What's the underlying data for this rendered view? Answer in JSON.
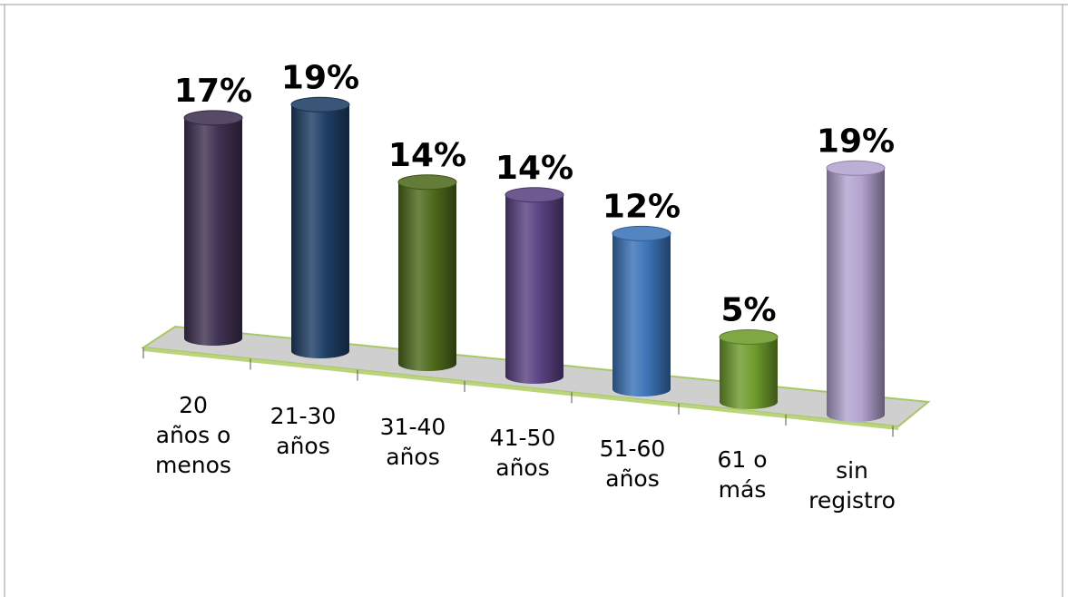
{
  "chart_data": {
    "type": "bar",
    "style": "3d-cylinder",
    "categories": [
      "20 años o menos",
      "21-30 años",
      "31-40 años",
      "41-50 años",
      "51-60 años",
      "61 o más",
      "sin registro"
    ],
    "category_lines": [
      [
        "20",
        "años o",
        "menos"
      ],
      [
        "21-30",
        "años"
      ],
      [
        "31-40",
        "años"
      ],
      [
        "41-50",
        "años"
      ],
      [
        "51-60",
        "años"
      ],
      [
        "61 o",
        "más"
      ],
      [
        "sin",
        "registro"
      ]
    ],
    "values": [
      17,
      19,
      14,
      14,
      12,
      5,
      19
    ],
    "data_labels": [
      "17%",
      "19%",
      "14%",
      "14%",
      "12%",
      "5%",
      "19%"
    ],
    "colors": [
      "#3f3152",
      "#1f3e66",
      "#4e6a1c",
      "#5a4282",
      "#3b74b8",
      "#6e9c2c",
      "#b3a3cf"
    ],
    "floor_color": "#c8c8c8",
    "floor_edge_color": "#a9c768",
    "unit": "%",
    "ylim": [
      0,
      20
    ],
    "legend": "none",
    "grid": false,
    "title": ""
  }
}
